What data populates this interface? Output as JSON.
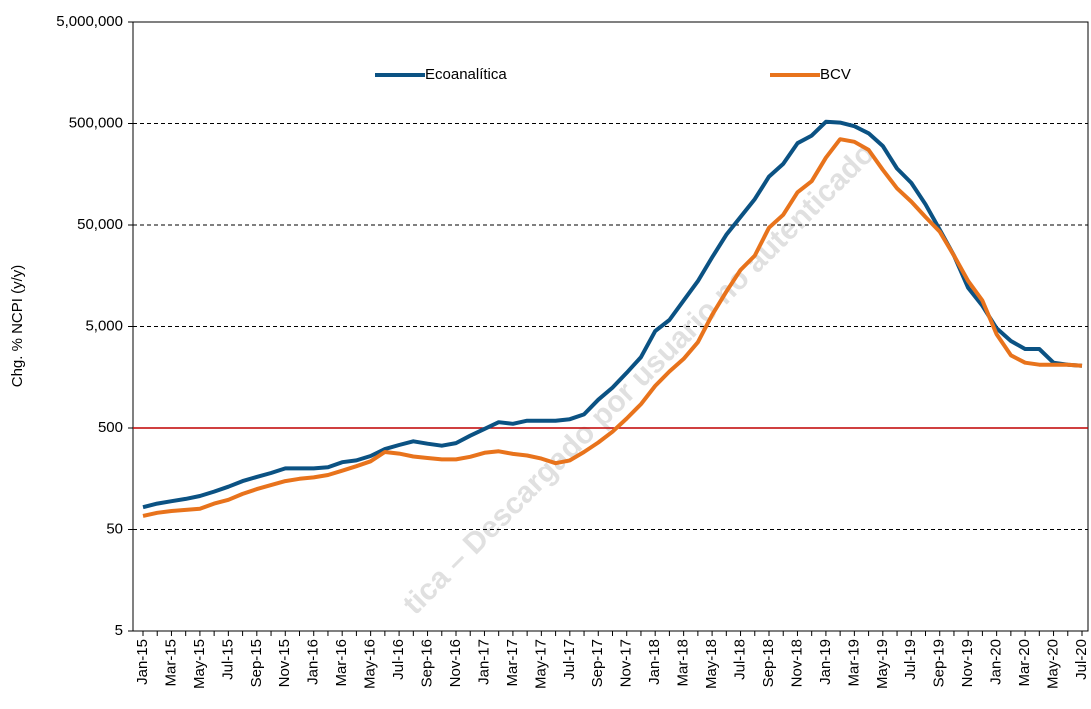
{
  "chart_data": {
    "type": "line",
    "y_label": "Chg. % NCPI (y/y)",
    "watermark": "tica – Descargado por usuario no autenticado",
    "log_scale": true,
    "grid": true,
    "categories": [
      "Jan-15",
      null,
      "Mar-15",
      null,
      "May-15",
      null,
      "Jul-15",
      null,
      "Sep-15",
      null,
      "Nov-15",
      null,
      "Jan-16",
      null,
      "Mar-16",
      null,
      "May-16",
      null,
      "Jul-16",
      null,
      "Sep-16",
      null,
      "Nov-16",
      null,
      "Jan-17",
      null,
      "Mar-17",
      null,
      "May-17",
      null,
      "Jul-17",
      null,
      "Sep-17",
      null,
      "Nov-17",
      null,
      "Jan-18",
      null,
      "Mar-18",
      null,
      "May-18",
      null,
      "Jul-18",
      null,
      "Sep-18",
      null,
      "Nov-18",
      null,
      "Jan-19",
      null,
      "Mar-19",
      null,
      "May-19",
      null,
      "Jul-19",
      null,
      "Sep-19",
      null,
      "Nov-19",
      null,
      "Jan-20",
      null,
      "Mar-20",
      null,
      "May-20",
      null,
      "Jul-20"
    ],
    "series": [
      {
        "name": "Ecoanalítica",
        "color": "#0b5283",
        "values": [
          83,
          90,
          95,
          100,
          107,
          118,
          132,
          150,
          165,
          180,
          200,
          200,
          200,
          205,
          230,
          240,
          265,
          310,
          340,
          370,
          350,
          335,
          355,
          420,
          490,
          570,
          550,
          590,
          590,
          590,
          610,
          680,
          950,
          1250,
          1750,
          2500,
          4500,
          5800,
          9000,
          14000,
          24000,
          40000,
          60000,
          90000,
          150000,
          200000,
          320000,
          380000,
          520000,
          510000,
          470000,
          400000,
          300000,
          180000,
          130000,
          80000,
          45000,
          25000,
          12000,
          8000,
          4800,
          3600,
          3000,
          3000,
          2200,
          2100,
          2050
        ]
      },
      {
        "name": "BCV",
        "color": "#e8731c",
        "values": [
          68,
          73,
          76,
          78,
          80,
          90,
          98,
          112,
          125,
          137,
          150,
          158,
          163,
          172,
          190,
          210,
          235,
          290,
          280,
          262,
          253,
          245,
          245,
          260,
          285,
          295,
          278,
          268,
          250,
          225,
          240,
          290,
          360,
          460,
          620,
          860,
          1300,
          1800,
          2400,
          3500,
          6500,
          11000,
          18000,
          25000,
          47000,
          63000,
          105000,
          135000,
          230000,
          350000,
          330000,
          275000,
          175000,
          115000,
          85000,
          60000,
          43000,
          25000,
          14000,
          9000,
          4200,
          2600,
          2200,
          2100,
          2100,
          2100,
          2050
        ]
      }
    ],
    "ylim": [
      5,
      5000000
    ],
    "yticks": [
      5,
      50,
      {
        "value": 500,
        "label": "500"
      },
      {
        "value": 5000,
        "label": "5,000"
      },
      {
        "value": 50000,
        "label": "50,000"
      },
      {
        "value": 500000,
        "label": "500,000"
      },
      {
        "value": 5000000,
        "label": "5,000,000"
      }
    ],
    "reference_line": {
      "value": 500,
      "color": "#c00000"
    }
  }
}
